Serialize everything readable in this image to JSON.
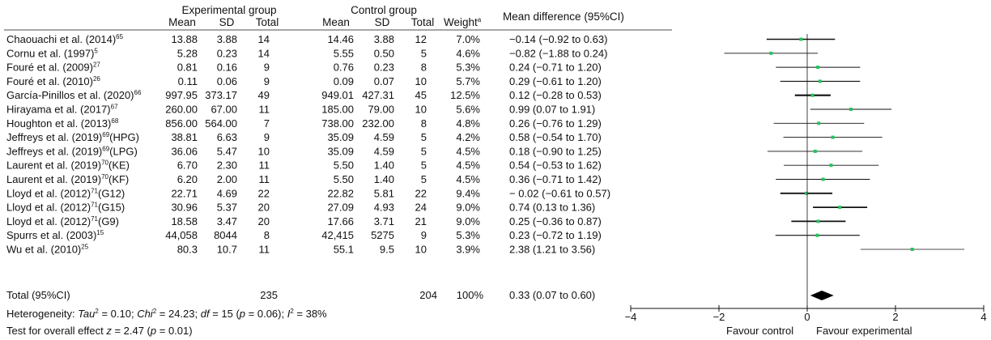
{
  "headers": {
    "group_experimental": "Experimental group",
    "group_control": "Control group",
    "mean": "Mean",
    "sd": "SD",
    "total": "Total",
    "weight": "Weight",
    "weight_sup": "a",
    "effect": "Mean difference (95%CI)"
  },
  "studies": [
    {
      "name": "Chaouachi et al. (2014)",
      "ref": "65",
      "suffix": "",
      "e_mean": "13.88",
      "e_sd": "3.88",
      "e_total": "14",
      "c_mean": "14.46",
      "c_sd": "3.88",
      "c_total": "12",
      "weight": "7.0%",
      "ci_text": "−0.14 (−0.92 to 0.63)",
      "md": -0.14,
      "lo": -0.92,
      "hi": 0.63
    },
    {
      "name": "Cornu et al. (1997)",
      "ref": "5",
      "suffix": "",
      "e_mean": "5.28",
      "e_sd": "0.23",
      "e_total": "14",
      "c_mean": "5.55",
      "c_sd": "0.50",
      "c_total": "5",
      "weight": "4.6%",
      "ci_text": "−0.82 (−1.88 to 0.24)",
      "md": -0.82,
      "lo": -1.88,
      "hi": 0.24
    },
    {
      "name": "Fouré et al. (2009)",
      "ref": "27",
      "suffix": "",
      "e_mean": "0.81",
      "e_sd": "0.16",
      "e_total": "9",
      "c_mean": "0.76",
      "c_sd": "0.23",
      "c_total": "8",
      "weight": "5.3%",
      "ci_text": "0.24 (−0.71 to 1.20)",
      "md": 0.24,
      "lo": -0.71,
      "hi": 1.2
    },
    {
      "name": "Fouré et al. (2010)",
      "ref": "26",
      "suffix": "",
      "e_mean": "0.11",
      "e_sd": "0.06",
      "e_total": "9",
      "c_mean": "0.09",
      "c_sd": "0.07",
      "c_total": "10",
      "weight": "5.7%",
      "ci_text": "0.29 (−0.61 to 1.20)",
      "md": 0.29,
      "lo": -0.61,
      "hi": 1.2
    },
    {
      "name": "García-Pinillos et al. (2020)",
      "ref": "66",
      "suffix": "",
      "e_mean": "997.95",
      "e_sd": "373.17",
      "e_total": "49",
      "c_mean": "949.01",
      "c_sd": "427.31",
      "c_total": "45",
      "weight": "12.5%",
      "ci_text": "0.12 (−0.28 to 0.53)",
      "md": 0.12,
      "lo": -0.28,
      "hi": 0.53
    },
    {
      "name": "Hirayama et al. (2017)",
      "ref": "67",
      "suffix": "",
      "e_mean": "260.00",
      "e_sd": "67.00",
      "e_total": "11",
      "c_mean": "185.00",
      "c_sd": "79.00",
      "c_total": "10",
      "weight": "5.6%",
      "ci_text": "0.99 (0.07 to 1.91)",
      "md": 0.99,
      "lo": 0.07,
      "hi": 1.91
    },
    {
      "name": "Houghton et al. (2013)",
      "ref": "68",
      "suffix": "",
      "e_mean": "856.00",
      "e_sd": "564.00",
      "e_total": "7",
      "c_mean": "738.00",
      "c_sd": "232.00",
      "c_total": "8",
      "weight": "4.8%",
      "ci_text": "0.26 (−0.76 to 1.29)",
      "md": 0.26,
      "lo": -0.76,
      "hi": 1.29
    },
    {
      "name": "Jeffreys et al. (2019)",
      "ref": "69",
      "suffix": "(HPG)",
      "e_mean": "38.81",
      "e_sd": "6.63",
      "e_total": "9",
      "c_mean": "35.09",
      "c_sd": "4.59",
      "c_total": "5",
      "weight": "4.2%",
      "ci_text": "0.58 (−0.54 to 1.70)",
      "md": 0.58,
      "lo": -0.54,
      "hi": 1.7
    },
    {
      "name": "Jeffreys et al. (2019)",
      "ref": "69",
      "suffix": "(LPG)",
      "e_mean": "36.06",
      "e_sd": "5.47",
      "e_total": "10",
      "c_mean": "35.09",
      "c_sd": "4.59",
      "c_total": "5",
      "weight": "4.5%",
      "ci_text": "0.18 (−0.90 to 1.25)",
      "md": 0.18,
      "lo": -0.9,
      "hi": 1.25
    },
    {
      "name": "Laurent et al. (2019)",
      "ref": "70",
      "suffix": "(KE)",
      "e_mean": "6.70",
      "e_sd": "2.30",
      "e_total": "11",
      "c_mean": "5.50",
      "c_sd": "1.40",
      "c_total": "5",
      "weight": "4.5%",
      "ci_text": "0.54 (−0.53 to 1.62)",
      "md": 0.54,
      "lo": -0.53,
      "hi": 1.62
    },
    {
      "name": "Laurent et al. (2019)",
      "ref": "70",
      "suffix": "(KF)",
      "e_mean": "6.20",
      "e_sd": "2.00",
      "e_total": "11",
      "c_mean": "5.50",
      "c_sd": "1.40",
      "c_total": "5",
      "weight": "4.5%",
      "ci_text": "0.36 (−0.71 to 1.42)",
      "md": 0.36,
      "lo": -0.71,
      "hi": 1.42
    },
    {
      "name": "Lloyd et al. (2012)",
      "ref": "71",
      "suffix": "(G12)",
      "e_mean": "22.71",
      "e_sd": "4.69",
      "e_total": "22",
      "c_mean": "22.82",
      "c_sd": "5.81",
      "c_total": "22",
      "weight": "9.4%",
      "ci_text": "− 0.02 (−0.61 to 0.57)",
      "md": -0.02,
      "lo": -0.61,
      "hi": 0.57
    },
    {
      "name": "Lloyd et al. (2012)",
      "ref": "71",
      "suffix": "(G15)",
      "e_mean": "30.96",
      "e_sd": "5.37",
      "e_total": "20",
      "c_mean": "27.09",
      "c_sd": "4.93",
      "c_total": "24",
      "weight": "9.0%",
      "ci_text": "0.74 (0.13 to 1.36)",
      "md": 0.74,
      "lo": 0.13,
      "hi": 1.36
    },
    {
      "name": "Lloyd et al. (2012)",
      "ref": "71",
      "suffix": "(G9)",
      "e_mean": "18.58",
      "e_sd": "3.47",
      "e_total": "20",
      "c_mean": "17.66",
      "c_sd": "3.71",
      "c_total": "21",
      "weight": "9.0%",
      "ci_text": "0.25 (−0.36 to 0.87)",
      "md": 0.25,
      "lo": -0.36,
      "hi": 0.87
    },
    {
      "name": "Spurrs et al. (2003)",
      "ref": "15",
      "suffix": "",
      "e_mean": "44,058",
      "e_sd": "8044",
      "e_total": "8",
      "c_mean": "42,415",
      "c_sd": "5275",
      "c_total": "9",
      "weight": "5.3%",
      "ci_text": "0.23 (−0.72 to 1.19)",
      "md": 0.23,
      "lo": -0.72,
      "hi": 1.19
    },
    {
      "name": "Wu et al. (2010)",
      "ref": "25",
      "suffix": "",
      "e_mean": "80.3",
      "e_sd": "10.7",
      "e_total": "11",
      "c_mean": "55.1",
      "c_sd": "9.5",
      "c_total": "10",
      "weight": "3.9%",
      "ci_text": "2.38 (1.21 to 3.56)",
      "md": 2.38,
      "lo": 1.21,
      "hi": 3.56
    }
  ],
  "total_row": {
    "label": "Total (95%CI)",
    "e_total": "235",
    "c_total": "204",
    "weight": "100%",
    "ci_text": "0.33 (0.07 to 0.60)",
    "md": 0.33,
    "lo": 0.07,
    "hi": 0.6
  },
  "footer": {
    "heterogeneity": {
      "label": "Heterogeneity: ",
      "tau_label": "Tau",
      "tau_value": " = 0.10; ",
      "chi_label": "Chi",
      "chi_value": " = 24.23; ",
      "df_label": "df",
      "df_value": " = 15 (",
      "p_label": "p",
      "p_value": " = 0.06); ",
      "i_label": "I",
      "i_value": " = 38%",
      "square": "2"
    },
    "overall": {
      "label": "Test for overall effect ",
      "z_label": "z",
      "z_value": " = 2.47 (",
      "p_label": "p",
      "p_value": " = 0.01)"
    }
  },
  "chart_data": {
    "type": "forest",
    "xlim": [
      -4,
      4
    ],
    "xticks": [
      "−4",
      "−2",
      "0",
      "2",
      "4"
    ],
    "xtick_values": [
      -4,
      -2,
      0,
      2,
      4
    ],
    "favour_left": "Favour control",
    "favour_right": "Favour experimental",
    "marker_color": "#22c55e",
    "ci_color": "#111111",
    "diamond_color": "#000000"
  }
}
